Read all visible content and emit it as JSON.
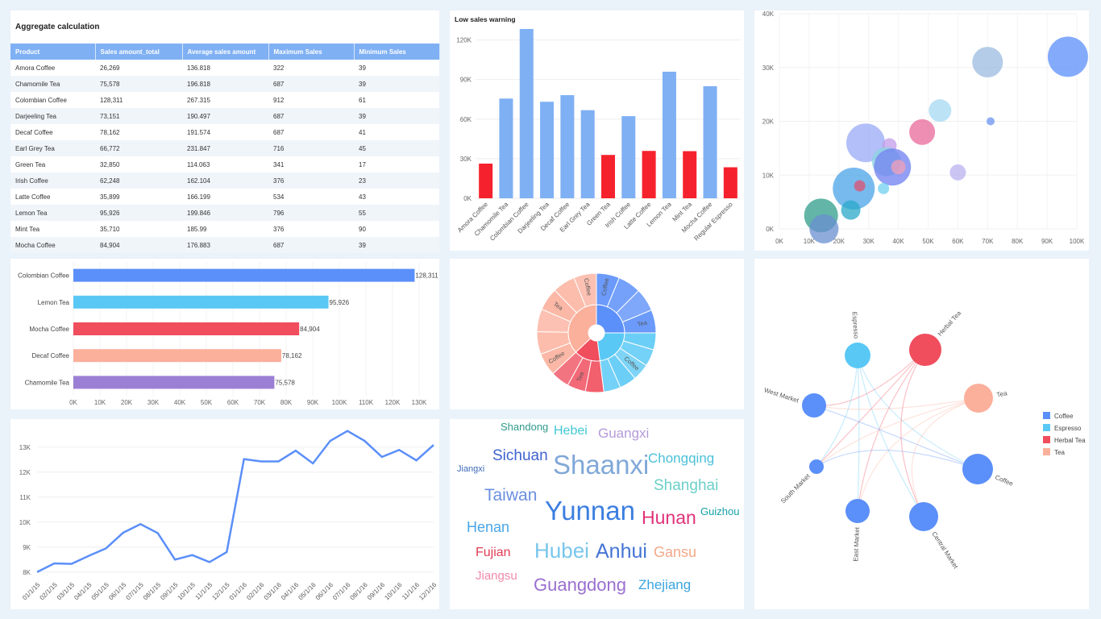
{
  "table": {
    "title": "Aggregate calculation",
    "columns": [
      "Product",
      "Sales amount_total",
      "Average sales amount",
      "Maximum Sales",
      "Minimum Sales"
    ],
    "rows": [
      [
        "Amora Coffee",
        "26,269",
        "136.818",
        "322",
        "39"
      ],
      [
        "Chamomile Tea",
        "75,578",
        "196.818",
        "687",
        "39"
      ],
      [
        "Colombian Coffee",
        "128,311",
        "267.315",
        "912",
        "61"
      ],
      [
        "Darjeeling Tea",
        "73,151",
        "190.497",
        "687",
        "39"
      ],
      [
        "Decaf Coffee",
        "78,162",
        "191.574",
        "687",
        "41"
      ],
      [
        "Earl Grey Tea",
        "66,772",
        "231.847",
        "716",
        "45"
      ],
      [
        "Green Tea",
        "32,850",
        "114.063",
        "341",
        "17"
      ],
      [
        "Irish Coffee",
        "62,248",
        "162.104",
        "376",
        "23"
      ],
      [
        "Latte Coffee",
        "35,899",
        "166.199",
        "534",
        "43"
      ],
      [
        "Lemon Tea",
        "95,926",
        "199.846",
        "796",
        "55"
      ],
      [
        "Mint Tea",
        "35,710",
        "185.99",
        "376",
        "90"
      ],
      [
        "Mocha Coffee",
        "84,904",
        "176.883",
        "687",
        "39"
      ]
    ]
  },
  "chart_data": [
    {
      "type": "bar",
      "title": "Low sales warning",
      "categories": [
        "Amora Coffee",
        "Chamomile Tea",
        "Colombian Coffee",
        "Darjeeling Tea",
        "Decaf Coffee",
        "Earl Grey Tea",
        "Green Tea",
        "Irish Coffee",
        "Latte Coffee",
        "Lemon Tea",
        "Mint Tea",
        "Mocha Coffee",
        "Regular Espresso"
      ],
      "values": [
        26269,
        75578,
        128311,
        73151,
        78162,
        66772,
        32850,
        62248,
        35899,
        95926,
        35710,
        84904,
        23500
      ],
      "highlight": [
        true,
        false,
        false,
        false,
        false,
        false,
        true,
        false,
        true,
        false,
        true,
        false,
        true
      ],
      "colors": {
        "normal": "#7fb0f4",
        "warning": "#f5222d"
      },
      "yticks": [
        0,
        30000,
        60000,
        90000,
        120000
      ],
      "ytick_labels": [
        "0K",
        "30K",
        "60K",
        "90K",
        "120K"
      ],
      "ylim": [
        0,
        135000
      ]
    },
    {
      "type": "scatter",
      "xticks": [
        "0K",
        "10K",
        "20K",
        "30K",
        "40K",
        "50K",
        "60K",
        "70K",
        "80K",
        "90K",
        "100K"
      ],
      "yticks": [
        "0K",
        "10K",
        "20K",
        "30K",
        "40K"
      ],
      "xlim": [
        0,
        100000
      ],
      "ylim": [
        0,
        40000
      ],
      "points": [
        {
          "x": 97000,
          "y": 32000,
          "size": 25,
          "color": "#5b8ff9"
        },
        {
          "x": 70000,
          "y": 31000,
          "size": 19,
          "color": "#9bbbe0"
        },
        {
          "x": 54000,
          "y": 22000,
          "size": 14,
          "color": "#a5d8f3"
        },
        {
          "x": 71000,
          "y": 20000,
          "size": 5,
          "color": "#6a93f0"
        },
        {
          "x": 48000,
          "y": 18000,
          "size": 16,
          "color": "#e8689a"
        },
        {
          "x": 29000,
          "y": 16000,
          "size": 24,
          "color": "#9aa9f5"
        },
        {
          "x": 37000,
          "y": 15500,
          "size": 9,
          "color": "#c39be8"
        },
        {
          "x": 36000,
          "y": 12500,
          "size": 18,
          "color": "#88d4e0"
        },
        {
          "x": 38000,
          "y": 11500,
          "size": 23,
          "color": "#6f7ff0"
        },
        {
          "x": 40000,
          "y": 11500,
          "size": 9,
          "color": "#f2a0b8"
        },
        {
          "x": 60000,
          "y": 10500,
          "size": 10,
          "color": "#b9b2f0"
        },
        {
          "x": 25000,
          "y": 7500,
          "size": 26,
          "color": "#4aa3e8"
        },
        {
          "x": 27000,
          "y": 8000,
          "size": 7,
          "color": "#e05070"
        },
        {
          "x": 35000,
          "y": 7500,
          "size": 7,
          "color": "#6fd0f0"
        },
        {
          "x": 24000,
          "y": 3500,
          "size": 12,
          "color": "#2aa8c8"
        },
        {
          "x": 14000,
          "y": 2500,
          "size": 21,
          "color": "#2e9c8a"
        },
        {
          "x": 15000,
          "y": 0,
          "size": 18,
          "color": "#6a8fd0"
        }
      ]
    },
    {
      "type": "bar",
      "orientation": "horizontal",
      "categories": [
        "Colombian Coffee",
        "Lemon Tea",
        "Mocha Coffee",
        "Decaf Coffee",
        "Chamomile Tea"
      ],
      "values": [
        128311,
        95926,
        84904,
        78162,
        75578
      ],
      "value_labels": [
        "128,311",
        "95,926",
        "84,904",
        "78,162",
        "75,578"
      ],
      "colors": [
        "#5b8ff9",
        "#5ac8f5",
        "#f04d5d",
        "#fbb09c",
        "#9b7fd4"
      ],
      "xticks": [
        "0K",
        "10K",
        "20K",
        "30K",
        "40K",
        "50K",
        "60K",
        "70K",
        "80K",
        "90K",
        "100K",
        "110K",
        "120K",
        "130K"
      ],
      "xlim": [
        0,
        130000
      ]
    },
    {
      "type": "pie",
      "variant": "sunburst",
      "inner": [
        {
          "name": "Coffee",
          "value": 25,
          "color": "#5b8ff9"
        },
        {
          "name": "Espresso",
          "value": 23,
          "color": "#5ac8f5"
        },
        {
          "name": "Herbal Tea",
          "value": 15,
          "color": "#f04d5d"
        },
        {
          "name": "Tea",
          "value": 37,
          "color": "#fbb09c"
        }
      ],
      "outer_counts": [
        4,
        5,
        3,
        6
      ],
      "outer_labels": [
        "Coffee",
        "Tea",
        "Coffee",
        "Tea",
        "Coffee",
        "Coffee",
        "Tea"
      ]
    },
    {
      "type": "line",
      "x": [
        "01/1/15",
        "02/1/15",
        "03/1/15",
        "04/1/15",
        "05/1/15",
        "06/1/15",
        "07/1/15",
        "08/1/15",
        "09/1/15",
        "10/1/15",
        "11/1/15",
        "12/1/15",
        "01/1/16",
        "02/1/16",
        "03/1/16",
        "04/1/16",
        "05/1/16",
        "06/1/16",
        "07/1/16",
        "08/1/16",
        "09/1/16",
        "10/1/16",
        "11/1/16",
        "12/1/16"
      ],
      "y": [
        8000,
        8350,
        8330,
        8650,
        8950,
        9580,
        9920,
        9560,
        8500,
        8680,
        8400,
        8800,
        12520,
        12430,
        12430,
        12860,
        12350,
        13250,
        13650,
        13250,
        12610,
        12890,
        12470,
        13090
      ],
      "yticks": [
        "8K",
        "9K",
        "10K",
        "11K",
        "12K",
        "13K"
      ],
      "ylim": [
        7800,
        13800
      ],
      "color": "#5b8ff9"
    },
    {
      "type": "other",
      "variant": "wordcloud",
      "words": [
        {
          "text": "Shandong",
          "color": "#2f9b8c"
        },
        {
          "text": "Hebei",
          "color": "#42c8d4"
        },
        {
          "text": "Guangxi",
          "color": "#b49ad9"
        },
        {
          "text": "Sichuan",
          "color": "#3f63d0"
        },
        {
          "text": "Shaanxi",
          "color": "#80a8d8"
        },
        {
          "text": "Chongqing",
          "color": "#4ac0d8"
        },
        {
          "text": "Jiangxi",
          "color": "#3e6ab8"
        },
        {
          "text": "Shanghai",
          "color": "#6ad0c8"
        },
        {
          "text": "Taiwan",
          "color": "#6b8fe0"
        },
        {
          "text": "Yunnan",
          "color": "#3b7ee0"
        },
        {
          "text": "Hunan",
          "color": "#e0337a"
        },
        {
          "text": "Guizhou",
          "color": "#16a0a8"
        },
        {
          "text": "Henan",
          "color": "#4aa6e6"
        },
        {
          "text": "Fujian",
          "color": "#e03e54"
        },
        {
          "text": "Hubei",
          "color": "#78c6ec"
        },
        {
          "text": "Anhui",
          "color": "#4474d4"
        },
        {
          "text": "Gansu",
          "color": "#f4a88a"
        },
        {
          "text": "Jiangsu",
          "color": "#f08aa8"
        },
        {
          "text": "Guangdong",
          "color": "#9a6fd0"
        },
        {
          "text": "Zhejiang",
          "color": "#3aa4e0"
        }
      ]
    },
    {
      "type": "other",
      "variant": "chord",
      "nodes": [
        {
          "name": "Espresso",
          "color": "#5ac8f5"
        },
        {
          "name": "Herbal Tea",
          "color": "#f04d5d"
        },
        {
          "name": "Tea",
          "color": "#fbb09c"
        },
        {
          "name": "Coffee",
          "color": "#5b8ff9"
        },
        {
          "name": "Central Market",
          "color": "#5b8ff9"
        },
        {
          "name": "East Market",
          "color": "#5b8ff9"
        },
        {
          "name": "South Market",
          "color": "#5b8ff9"
        },
        {
          "name": "West Market",
          "color": "#5b8ff9"
        }
      ],
      "legend": [
        {
          "name": "Coffee",
          "color": "#5b8ff9"
        },
        {
          "name": "Espresso",
          "color": "#5ac8f5"
        },
        {
          "name": "Herbal Tea",
          "color": "#f04d5d"
        },
        {
          "name": "Tea",
          "color": "#fbb09c"
        }
      ]
    }
  ]
}
